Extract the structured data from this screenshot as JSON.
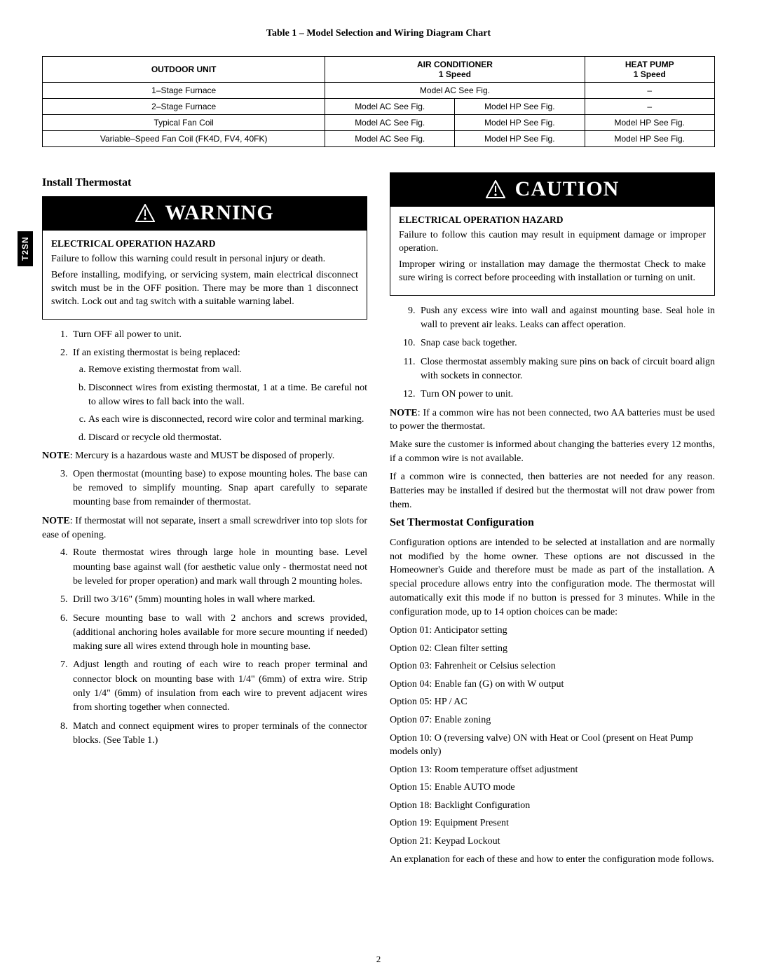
{
  "side_tab": "T2SN",
  "table_title": "Table 1 – Model Selection and Wiring Diagram Chart",
  "table": {
    "columns": [
      {
        "label": "OUTDOOR UNIT",
        "colspan": 1,
        "rowspan": 1
      },
      {
        "label": "AIR CONDITIONER",
        "sub": "1 Speed",
        "colspan": 2
      },
      {
        "label": "HEAT PUMP",
        "sub": "1 Speed",
        "colspan": 1
      }
    ],
    "rows": [
      [
        "1–Stage Furnace",
        "Model AC See Fig.",
        "",
        "–",
        true
      ],
      [
        "2–Stage Furnace",
        "Model AC See Fig.",
        "Model HP See Fig.",
        "–",
        false
      ],
      [
        "Typical Fan Coil",
        "Model AC See Fig.",
        "Model HP See Fig.",
        "Model HP See Fig.",
        false
      ],
      [
        "Variable–Speed Fan Coil (FK4D, FV4, 40FK)",
        "Model AC See Fig.",
        "Model HP See Fig.",
        "Model HP See Fig.",
        false
      ]
    ]
  },
  "left": {
    "heading": "Install Thermostat",
    "warning_label": "WARNING",
    "hazard_title": "ELECTRICAL OPERATION HAZARD",
    "hazard_p1": "Failure to follow this warning could result in personal injury or death.",
    "hazard_p2": "Before installing, modifying, or servicing system, main electrical disconnect switch must be in the OFF position. There may be more than 1 disconnect switch. Lock out and tag switch with a suitable warning label.",
    "list1": [
      "Turn OFF all power to unit.",
      "If an existing thermostat is being replaced:"
    ],
    "sublist2": [
      "Remove existing thermostat from wall.",
      "Disconnect wires from existing thermostat, 1 at a time. Be careful not to allow wires to fall back into the wall.",
      "As each wire is disconnected, record wire color and terminal marking.",
      "Discard or recycle old thermostat."
    ],
    "note1_label": "NOTE",
    "note1": ":  Mercury is a hazardous waste and MUST be disposed of properly.",
    "list3": [
      "Open thermostat (mounting base) to expose mounting holes. The base can be removed to simplify mounting. Snap apart carefully to separate mounting base from remainder of thermostat."
    ],
    "note2_label": "NOTE",
    "note2": ":  If thermostat will not separate, insert a small screwdriver into top slots for ease of opening.",
    "list4": [
      "Route thermostat wires through large hole in mounting base. Level mounting base against wall (for aesthetic value only - thermostat need not be leveled for proper operation) and mark wall through 2 mounting holes.",
      "Drill two 3/16\" (5mm) mounting holes in wall where marked.",
      "Secure mounting base to wall with 2 anchors and screws provided, (additional anchoring holes available for more secure mounting if needed) making sure all wires extend through hole in mounting base.",
      "Adjust length and routing of each wire to reach proper terminal and connector block on mounting base with 1/4\" (6mm) of extra wire. Strip only 1/4\" (6mm) of insulation from each wire to prevent adjacent wires from shorting together when connected.",
      "Match and connect equipment wires to proper terminals of the connector blocks. (See Table 1.)"
    ]
  },
  "right": {
    "caution_label": "CAUTION",
    "hazard_title": "ELECTRICAL OPERATION HAZARD",
    "hazard_p1": "Failure to follow this caution may result in equipment damage or improper operation.",
    "hazard_p2": "Improper wiring or installation may damage the thermostat Check to make sure wiring is correct before proceeding with installation or turning on unit.",
    "list_cont": [
      "Push any excess wire into wall and against mounting base. Seal hole in wall to prevent air leaks. Leaks can affect operation.",
      "Snap case back together.",
      "Close thermostat assembly making sure pins on back of circuit board align with sockets in connector.",
      "Turn ON power to unit."
    ],
    "noteA_label": "NOTE",
    "noteA": ":  If a common wire has not been connected, two AA batteries must be used to power the thermostat.",
    "pA": "Make sure the customer is informed about changing the batteries every 12 months, if a common wire is not available.",
    "pB": "If a common wire is connected, then batteries are not needed for any reason. Batteries may be installed if desired but the thermostat will not draw power from them.",
    "heading2": "Set Thermostat Configuration",
    "config_intro": "Configuration options are intended to be selected at installation and are normally not modified by the home owner. These options are not discussed in the Homeowner's Guide and therefore must be made as part of the installation. A special procedure allows entry into the configuration mode. The thermostat will automatically exit this mode if no button is pressed for 3 minutes. While in the configuration mode, up to 14 option choices can be made:",
    "options": [
      "Option 01: Anticipator setting",
      "Option 02: Clean filter setting",
      "Option 03: Fahrenheit or Celsius selection",
      "Option 04: Enable fan (G) on with W output",
      "Option 05: HP / AC",
      "Option 07: Enable zoning",
      "Option 10: O (reversing valve) ON with Heat or Cool (present on Heat Pump models only)",
      "Option 13: Room temperature offset adjustment",
      "Option 15: Enable AUTO mode",
      "Option 18: Backlight Configuration",
      "Option 19: Equipment Present",
      "Option 21: Keypad Lockout"
    ],
    "outro": "An explanation for each of these and how to enter the configuration mode follows."
  },
  "page_number": "2"
}
